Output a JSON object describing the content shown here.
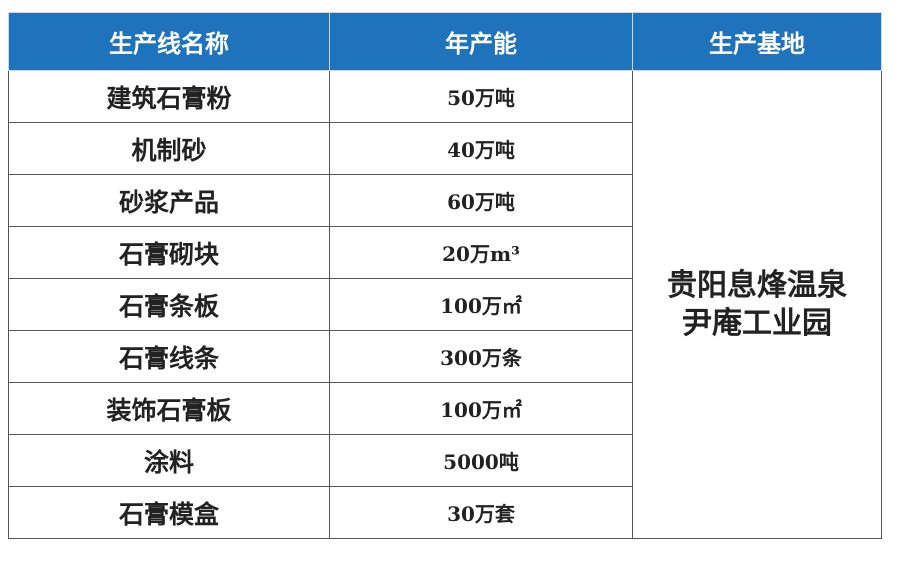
{
  "table": {
    "header": [
      "生产线名称",
      "年产能",
      "生产基地"
    ],
    "rows": [
      [
        "建筑石膏粉",
        "50万吨"
      ],
      [
        "机制砂",
        "40万吨"
      ],
      [
        "砂浆产品",
        "60万吨"
      ],
      [
        "石膏砌块",
        "20万m³"
      ],
      [
        "石膏条板",
        "100万㎡"
      ],
      [
        "石膏线条",
        "300万条"
      ],
      [
        "装饰石膏板",
        "100万㎡"
      ],
      [
        "涂料",
        "5000吨"
      ],
      [
        "石膏模盒",
        "30万套"
      ]
    ],
    "base": [
      "贵阳息烽温泉",
      "尹庵工业园"
    ]
  }
}
